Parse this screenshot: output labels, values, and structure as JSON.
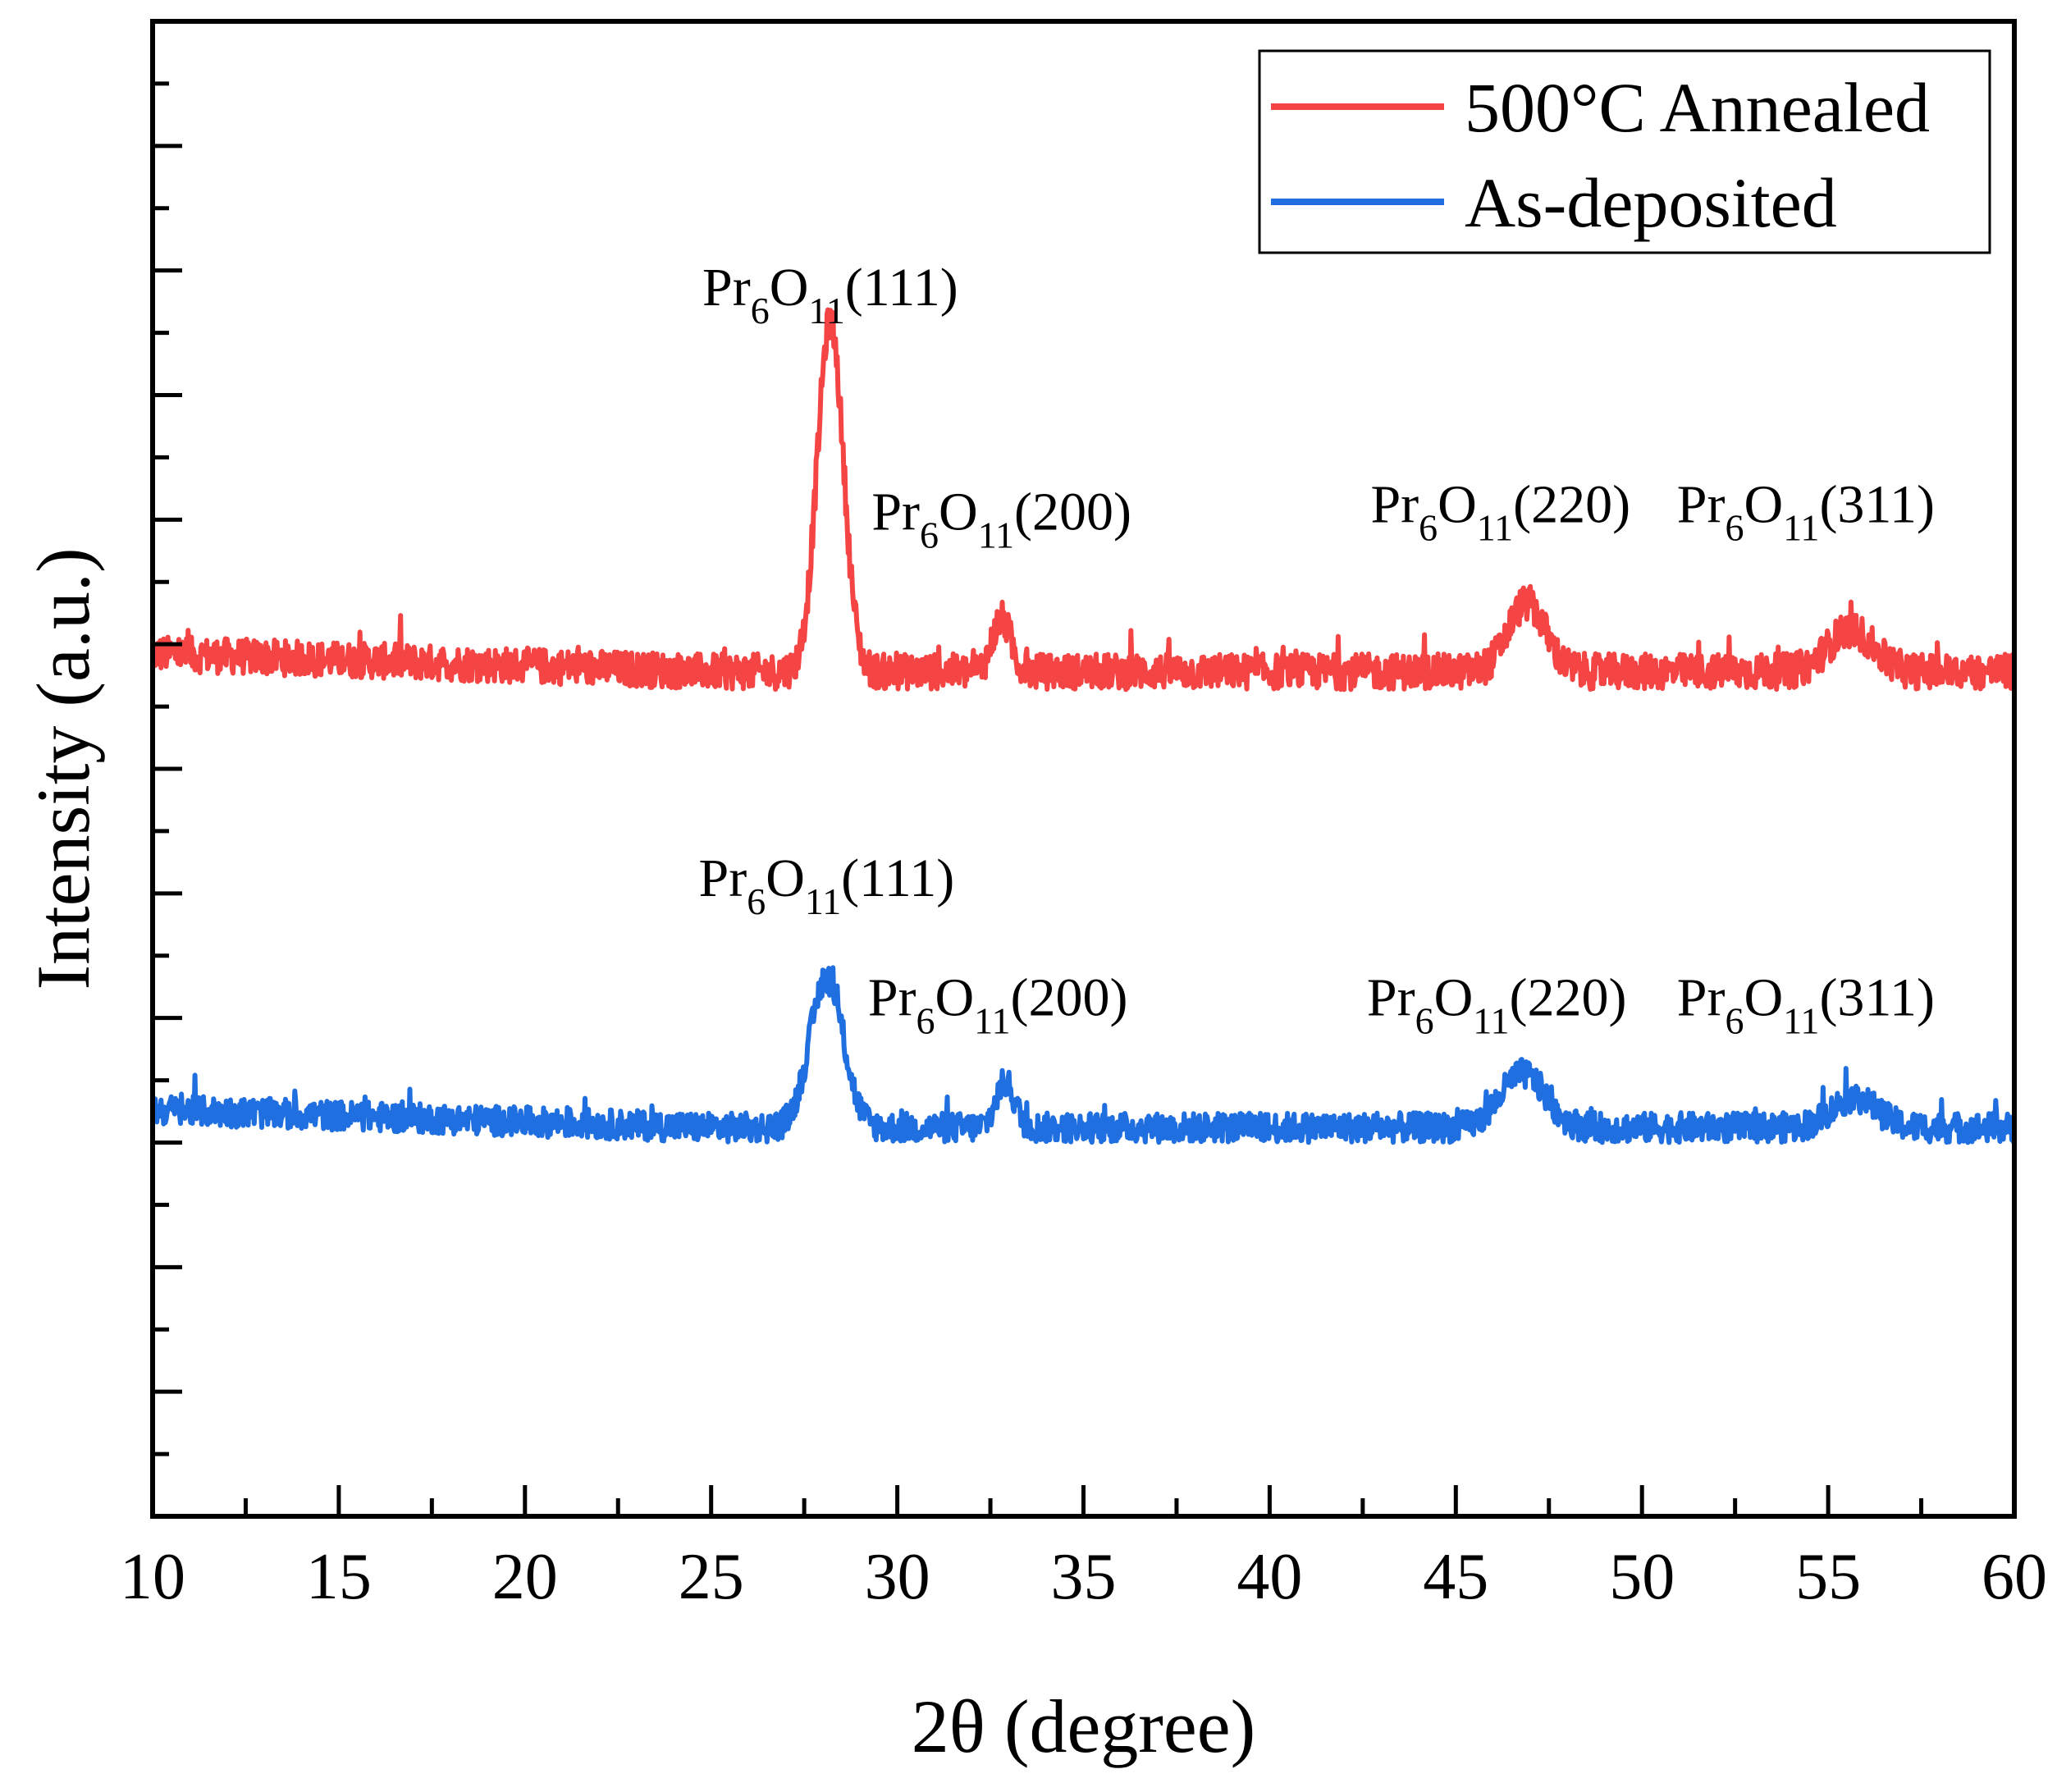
{
  "chart_data": {
    "type": "line",
    "xlabel": "2θ (degree)",
    "ylabel": "Intensity (a.u.)",
    "xlim": [
      10,
      60
    ],
    "ylim": [
      0,
      100
    ],
    "x_ticks": [
      "10",
      "15",
      "20",
      "25",
      "30",
      "35",
      "40",
      "45",
      "50",
      "55",
      "60"
    ],
    "y_tick_labels": "none",
    "grid": false,
    "legend_position": "top-right",
    "series": [
      {
        "name": "500°C Annealed",
        "color": "#f44444",
        "baseline": 56.5,
        "noise": 1.2,
        "peaks": [
          {
            "x": 28.2,
            "height": 23.5,
            "width": 0.35
          },
          {
            "x": 32.8,
            "height": 3.5,
            "width": 0.25
          },
          {
            "x": 46.9,
            "height": 4.6,
            "width": 0.5
          },
          {
            "x": 55.6,
            "height": 2.8,
            "width": 0.6
          }
        ]
      },
      {
        "name": "As-deposited",
        "color": "#1f6fe0",
        "baseline": 26.0,
        "noise": 1.0,
        "peaks": [
          {
            "x": 28.1,
            "height": 10.0,
            "width": 0.45
          },
          {
            "x": 32.9,
            "height": 3.0,
            "width": 0.25
          },
          {
            "x": 46.8,
            "height": 3.6,
            "width": 0.6
          },
          {
            "x": 55.7,
            "height": 2.0,
            "width": 0.6
          }
        ]
      }
    ],
    "annotations": [
      {
        "series": "500°C Annealed",
        "x": 28.2,
        "y": 81,
        "base": "Pr",
        "sub1": "6",
        "mid": "O",
        "sub2": "11",
        "plane": "(111)"
      },
      {
        "series": "500°C Annealed",
        "x": 32.8,
        "y": 66,
        "base": "Pr",
        "sub1": "6",
        "mid": "O",
        "sub2": "11",
        "plane": "(200)"
      },
      {
        "series": "500°C Annealed",
        "x": 46.2,
        "y": 66.5,
        "base": "Pr",
        "sub1": "6",
        "mid": "O",
        "sub2": "11",
        "plane": "(220)"
      },
      {
        "series": "500°C Annealed",
        "x": 54.4,
        "y": 66.5,
        "base": "Pr",
        "sub1": "6",
        "mid": "O",
        "sub2": "11",
        "plane": "(311)"
      },
      {
        "series": "As-deposited",
        "x": 28.1,
        "y": 41.5,
        "base": "Pr",
        "sub1": "6",
        "mid": "O",
        "sub2": "11",
        "plane": "(111)"
      },
      {
        "series": "As-deposited",
        "x": 32.7,
        "y": 33.5,
        "base": "Pr",
        "sub1": "6",
        "mid": "O",
        "sub2": "11",
        "plane": "(200)"
      },
      {
        "series": "As-deposited",
        "x": 46.1,
        "y": 33.5,
        "base": "Pr",
        "sub1": "6",
        "mid": "O",
        "sub2": "11",
        "plane": "(220)"
      },
      {
        "series": "As-deposited",
        "x": 54.4,
        "y": 33.5,
        "base": "Pr",
        "sub1": "6",
        "mid": "O",
        "sub2": "11",
        "plane": "(311)"
      }
    ]
  }
}
